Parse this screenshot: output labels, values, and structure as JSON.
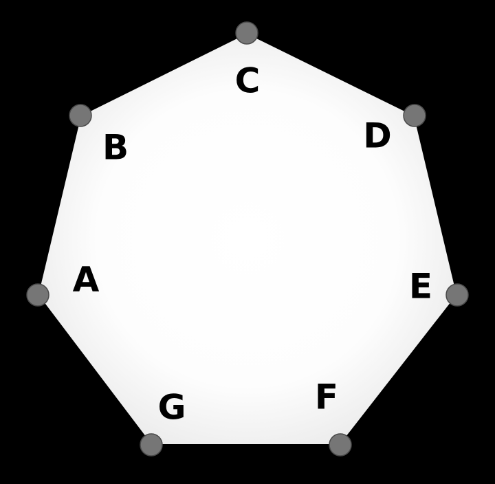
{
  "diagram": {
    "background_color": "#000000",
    "polygon_fill_center": "#ffffff",
    "polygon_fill_edge": "#e6e6e6",
    "vertex_color": "#767676",
    "vertices": [
      {
        "id": "A",
        "label": "A"
      },
      {
        "id": "B",
        "label": "B"
      },
      {
        "id": "C",
        "label": "C"
      },
      {
        "id": "D",
        "label": "D"
      },
      {
        "id": "E",
        "label": "E"
      },
      {
        "id": "F",
        "label": "F"
      },
      {
        "id": "G",
        "label": "G"
      }
    ]
  }
}
